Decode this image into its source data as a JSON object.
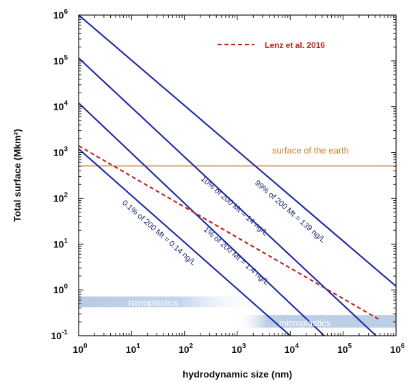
{
  "chart_data": {
    "type": "line",
    "xscale": "log",
    "yscale": "log",
    "xlim": [
      1,
      1000000
    ],
    "ylim": [
      0.1,
      1000000
    ],
    "xlabel": "hydrodynamic size (nm)",
    "ylabel": "Total surface  (Mkm²)",
    "x_ticks": [
      {
        "base": "10",
        "exp": "0"
      },
      {
        "base": "10",
        "exp": "1"
      },
      {
        "base": "10",
        "exp": "2"
      },
      {
        "base": "10",
        "exp": "3"
      },
      {
        "base": "10",
        "exp": "4"
      },
      {
        "base": "10",
        "exp": "5"
      },
      {
        "base": "10",
        "exp": "6"
      }
    ],
    "y_ticks": [
      {
        "base": "10",
        "exp": "-1"
      },
      {
        "base": "10",
        "exp": "0"
      },
      {
        "base": "10",
        "exp": "1"
      },
      {
        "base": "10",
        "exp": "2"
      },
      {
        "base": "10",
        "exp": "3"
      },
      {
        "base": "10",
        "exp": "4"
      },
      {
        "base": "10",
        "exp": "5"
      },
      {
        "base": "10",
        "exp": "6"
      }
    ],
    "series": [
      {
        "label": "99% of 200 Mt = 139 ng/L",
        "color": "#1f2aa8",
        "style": "solid",
        "x": [
          1,
          1000000
        ],
        "y": [
          1000000,
          1.2
        ]
      },
      {
        "label": "10% of 200 Mt = 14 ng/L",
        "color": "#1f2aa8",
        "style": "solid",
        "x": [
          1,
          420000
        ],
        "y": [
          115000,
          0.1
        ]
      },
      {
        "label": "1% of 200 Mt = 1.4 ng/L",
        "color": "#1f2aa8",
        "style": "solid",
        "x": [
          1,
          44000
        ],
        "y": [
          12000,
          0.1
        ]
      },
      {
        "label": "0.1% of 200 Mt = 0.14 ng/L",
        "color": "#1f2aa8",
        "style": "solid",
        "x": [
          1,
          10000
        ],
        "y": [
          1200,
          0.1
        ]
      },
      {
        "name": "Lenz et al. 2016",
        "color": "#c0241f",
        "style": "dashed",
        "x": [
          1,
          500000
        ],
        "y": [
          1400,
          0.22
        ]
      }
    ],
    "reference_line": {
      "label": "surface of the earth",
      "y": 510,
      "color": "#c8782a"
    },
    "bands": [
      {
        "label": "nanoplastics",
        "x": [
          1,
          3000
        ],
        "y": [
          0.42,
          0.72
        ]
      },
      {
        "label": "microplastics",
        "x": [
          900,
          1000000
        ],
        "y": [
          0.15,
          0.28
        ]
      }
    ],
    "legend": {
      "placement": "top-right",
      "label": "Lenz et al. 2016"
    },
    "grid": false
  }
}
